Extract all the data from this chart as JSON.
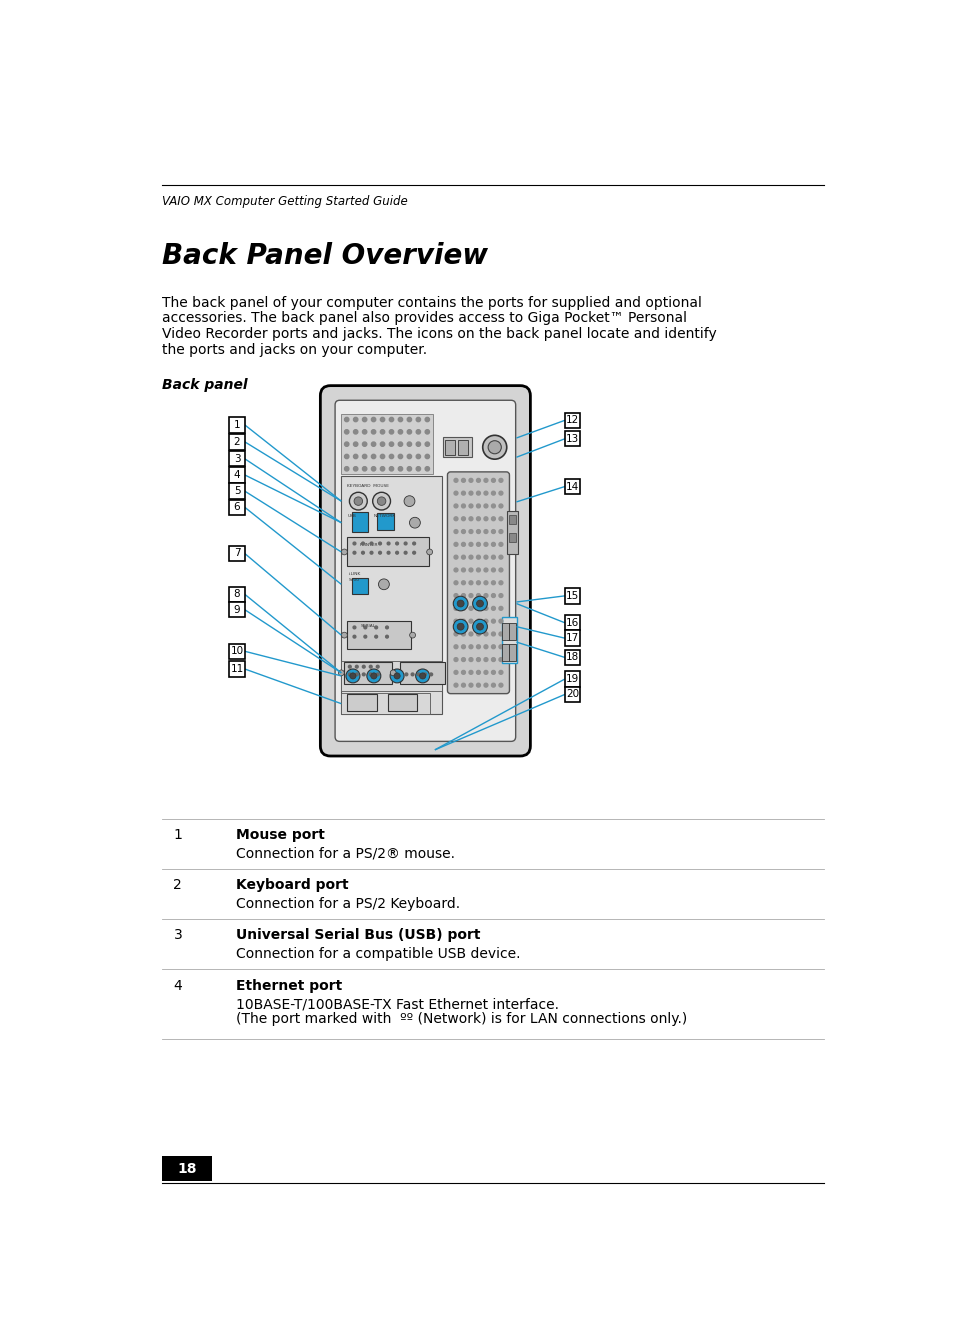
{
  "page_width": 9.54,
  "page_height": 13.4,
  "bg_color": "#ffffff",
  "header_text": "VAIO MX Computer Getting Started Guide",
  "header_font_size": 8.5,
  "title": "Back Panel Overview",
  "title_font_size": 20,
  "body_text": "The back panel of your computer contains the ports for supplied and optional\naccessories. The back panel also provides access to Giga Pocket™ Personal\nVideo Recorder ports and jacks. The icons on the back panel locate and identify\nthe ports and jacks on your computer.",
  "body_font_size": 10,
  "subheading": "Back panel",
  "subheading_font_size": 10,
  "table_entries": [
    {
      "number": "1",
      "title": "Mouse port",
      "description": "Connection for a PS/2® mouse."
    },
    {
      "number": "2",
      "title": "Keyboard port",
      "description": "Connection for a PS/2 Keyboard."
    },
    {
      "number": "3",
      "title": "Universal Serial Bus (USB) port",
      "description": "Connection for a compatible USB device."
    },
    {
      "number": "4",
      "title": "Ethernet port",
      "description": "10BASE-T/100BASE-TX Fast Ethernet interface.\n(The port marked with  ºº (Network) is for LAN connections only.)"
    }
  ],
  "page_number": "18",
  "blue": "#2299cc",
  "black": "#000000",
  "white": "#ffffff",
  "gray_light": "#e8e8e8",
  "gray_mid": "#cccccc",
  "gray_dark": "#999999"
}
